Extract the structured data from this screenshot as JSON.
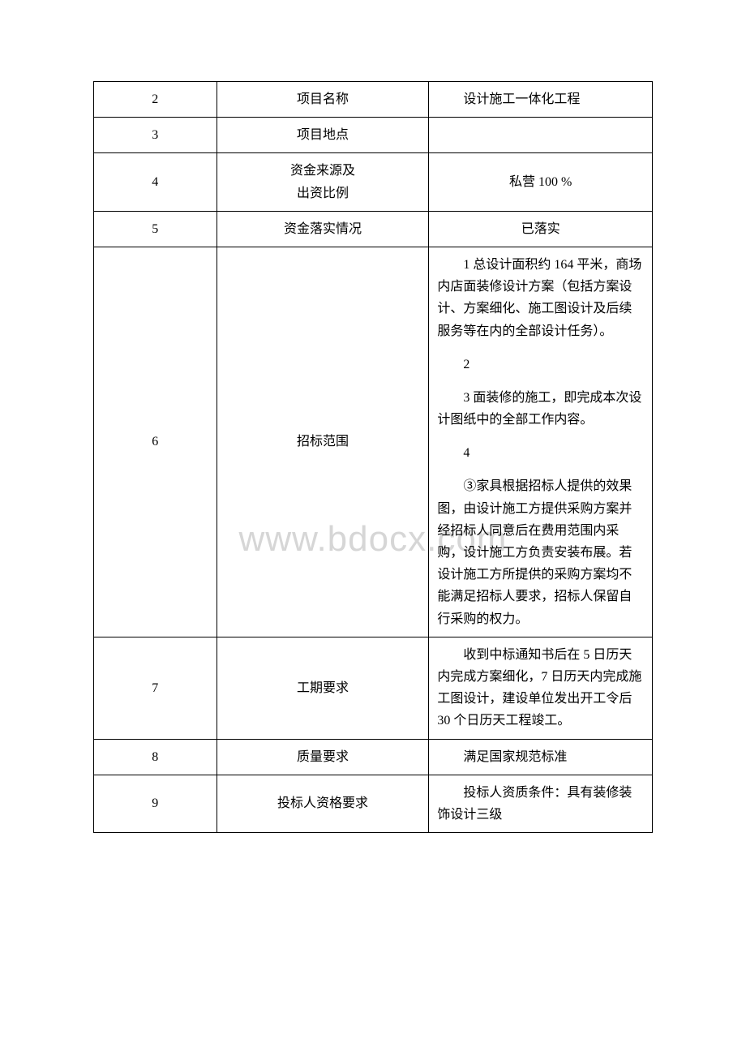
{
  "watermark": "www.bdocx.com",
  "rows": [
    {
      "num": "2",
      "label": "项目名称",
      "content": [
        {
          "text": "设计施工一体化工程",
          "indent": true
        }
      ]
    },
    {
      "num": "3",
      "label": "项目地点",
      "content": []
    },
    {
      "num": "4",
      "label_lines": [
        "资金来源及",
        "出资比例"
      ],
      "content_center": "私营 100 %"
    },
    {
      "num": "5",
      "label": "资金落实情况",
      "content_center": "已落实"
    },
    {
      "num": "6",
      "label": "招标范围",
      "content": [
        {
          "text": "1 总设计面积约 164 平米，商场内店面装修设计方案（包括方案设计、方案细化、施工图设计及后续服务等在内的全部设计任务）。",
          "indent": true
        },
        {
          "text": "2",
          "indent": true,
          "mt": true
        },
        {
          "text": "3 面装修的施工，即完成本次设计图纸中的全部工作内容。",
          "indent": true,
          "mt": true
        },
        {
          "text": "4",
          "indent": true,
          "mt": true
        },
        {
          "text": "③家具根据招标人提供的效果图，由设计施工方提供采购方案并经招标人同意后在费用范围内采购，设计施工方负责安装布展。若设计施工方所提供的采购方案均不能满足招标人要求，招标人保留自行采购的权力。",
          "indent": true,
          "mt": true
        }
      ]
    },
    {
      "num": "7",
      "label": "工期要求",
      "content": [
        {
          "text": "收到中标通知书后在 5 日历天内完成方案细化，7 日历天内完成施工图设计，建设单位发出开工令后 30 个日历天工程竣工。",
          "indent": true
        }
      ]
    },
    {
      "num": "8",
      "label": "质量要求",
      "content_center_indent": "满足国家规范标准"
    },
    {
      "num": "9",
      "label": "投标人资格要求",
      "content": [
        {
          "text": "投标人资质条件：具有装修装饰设计三级",
          "indent": true
        }
      ]
    }
  ]
}
